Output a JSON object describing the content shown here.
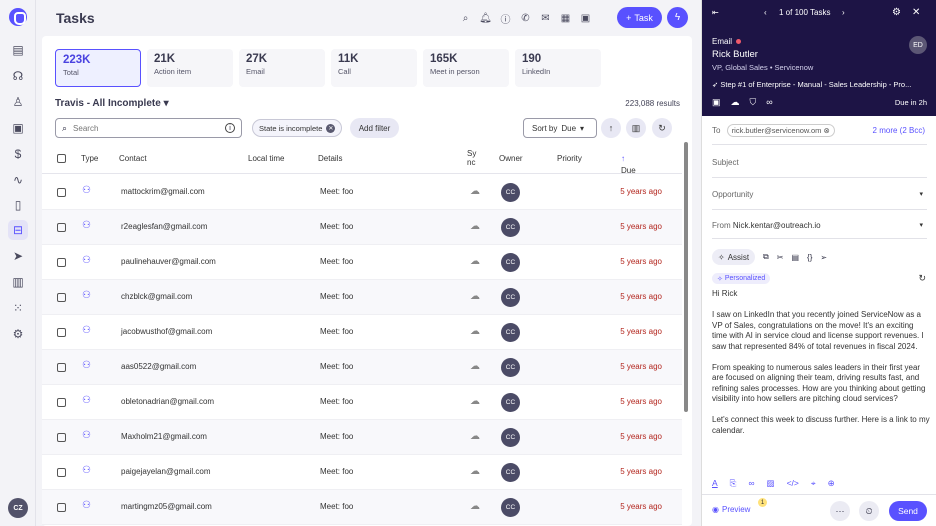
{
  "rail": {
    "items": [
      {
        "name": "inbox-icon",
        "glyph": "▤"
      },
      {
        "name": "brain-icon",
        "glyph": "☊"
      },
      {
        "name": "person-icon",
        "glyph": "♙"
      },
      {
        "name": "briefcase-icon",
        "glyph": "▣"
      },
      {
        "name": "dollar-icon",
        "glyph": "$"
      },
      {
        "name": "waveform-icon",
        "glyph": "∿"
      },
      {
        "name": "clipboard-icon",
        "glyph": "▯"
      },
      {
        "name": "tasks-icon",
        "glyph": "⊟"
      },
      {
        "name": "send-icon",
        "glyph": "➤"
      },
      {
        "name": "analytics-icon",
        "glyph": "▥"
      },
      {
        "name": "apps-grid-icon",
        "glyph": "⁙"
      },
      {
        "name": "settings-icon",
        "glyph": "⚙"
      }
    ],
    "user_initials": "CZ"
  },
  "header": {
    "title": "Tasks",
    "task_button": "Task",
    "icons": [
      "search-icon",
      "bell-icon",
      "help-icon",
      "phone-icon",
      "mail-icon",
      "calendar-icon",
      "calendar-check-icon"
    ]
  },
  "stats": [
    {
      "value": "223K",
      "label": "Total",
      "active": true
    },
    {
      "value": "21K",
      "label": "Action item"
    },
    {
      "value": "27K",
      "label": "Email"
    },
    {
      "value": "11K",
      "label": "Call"
    },
    {
      "value": "165K",
      "label": "Meet in person"
    },
    {
      "value": "190",
      "label": "LinkedIn"
    }
  ],
  "view": {
    "name": "Travis - All Incomplete",
    "results": "223,088 results"
  },
  "toolbar": {
    "search_placeholder": "Search",
    "filter_chip": "State is incomplete",
    "add_filter": "Add filter",
    "sort_label": "Sort by",
    "sort_value": "Due"
  },
  "table": {
    "columns": {
      "type": "Type",
      "contact": "Contact",
      "local_time": "Local time",
      "details": "Details",
      "sync": "Sync",
      "owner": "Owner",
      "priority": "Priority",
      "due": "Due"
    },
    "rows": [
      {
        "contact": "mattockrim@gmail.com",
        "details": "Meet: foo",
        "owner": "CC",
        "due": "5 years ago"
      },
      {
        "contact": "r2eaglesfan@gmail.com",
        "details": "Meet: foo",
        "owner": "CC",
        "due": "5 years ago"
      },
      {
        "contact": "paulinehauver@gmail.com",
        "details": "Meet: foo",
        "owner": "CC",
        "due": "5 years ago"
      },
      {
        "contact": "chzblck@gmail.com",
        "details": "Meet: foo",
        "owner": "CC",
        "due": "5 years ago"
      },
      {
        "contact": "jacobwusthof@gmail.com",
        "details": "Meet: foo",
        "owner": "CC",
        "due": "5 years ago"
      },
      {
        "contact": "aas0522@gmail.com",
        "details": "Meet: foo",
        "owner": "CC",
        "due": "5 years ago"
      },
      {
        "contact": "obletonadrian@gmail.com",
        "details": "Meet: foo",
        "owner": "CC",
        "due": "5 years ago"
      },
      {
        "contact": "Maxholm21@gmail.com",
        "details": "Meet: foo",
        "owner": "CC",
        "due": "5 years ago"
      },
      {
        "contact": "paigejayelan@gmail.com",
        "details": "Meet: foo",
        "owner": "CC",
        "due": "5 years ago"
      },
      {
        "contact": "martingmz05@gmail.com",
        "details": "Meet: foo",
        "owner": "CC",
        "due": "5 years ago"
      }
    ]
  },
  "email_panel": {
    "pager": "1 of 100 Tasks",
    "type": "Email",
    "name": "Rick Butler",
    "role": "VP, Global Sales • Servicenow",
    "avatar": "ED",
    "step": "Step #1 of Enterprise - Manual - Sales Leadership - Pro...",
    "due_in": "Due in 2h",
    "to_label": "To",
    "to_value": "rick.butler@servicenow.om",
    "more_recipients": "2 more (2 Bcc)",
    "subject_placeholder": "Subject",
    "opportunity_placeholder": "Opportunity",
    "from_label": "From",
    "from_value": "Nick.kentar@outreach.io",
    "assist_label": "Assist",
    "personalized": "Personalized",
    "greeting": "Hi Rick",
    "p1": "I saw on LinkedIn that you recently joined ServiceNow as a VP of Sales, congratulations on the move! It's an exciting time with AI in service cloud and license support revenues. I saw that represented 84% of total revenues in fiscal 2024.",
    "p2": "From speaking to numerous sales leaders in their first year are focused on aligning their team, driving results fast, and refining sales processes. How are you thinking about getting visibility into how sellers are pitching cloud services?",
    "p3": "Let's connect this week to discuss further. Here is a link to my calendar.",
    "preview": "Preview",
    "preview_count": "1",
    "send": "Send"
  }
}
